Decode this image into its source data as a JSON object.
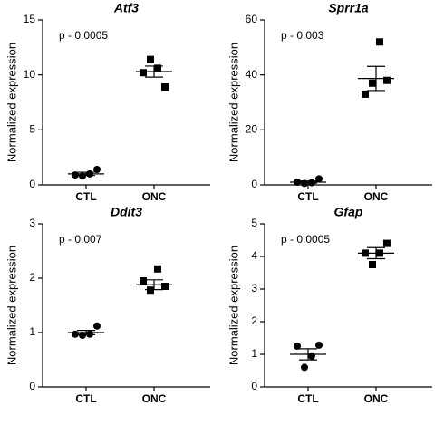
{
  "chart_data": [
    {
      "type": "scatter",
      "title": "Atf3",
      "annotation": "p - 0.0005",
      "ylabel": "Normalized expression",
      "categories": [
        "CTL",
        "ONC"
      ],
      "markers": [
        "circle",
        "square"
      ],
      "color": "#000000",
      "points": [
        [
          0.9,
          0.8,
          1.0,
          1.4
        ],
        [
          10.2,
          11.4,
          10.6,
          8.9
        ]
      ],
      "means": [
        1.0,
        10.3
      ],
      "errors": [
        0.15,
        0.5
      ],
      "ylim": [
        0,
        15
      ],
      "yticks": [
        0,
        5,
        10,
        15
      ]
    },
    {
      "type": "scatter",
      "title": "Sprr1a",
      "annotation": "p - 0.003",
      "ylabel": "Normalized expression",
      "categories": [
        "CTL",
        "ONC"
      ],
      "markers": [
        "circle",
        "square"
      ],
      "color": "#000000",
      "points": [
        [
          1.0,
          0.5,
          0.8,
          2.2
        ],
        [
          33,
          37,
          52,
          38
        ]
      ],
      "means": [
        1.0,
        38.7
      ],
      "errors": [
        0.4,
        4.4
      ],
      "ylim": [
        0,
        60
      ],
      "yticks": [
        0,
        20,
        40,
        60
      ]
    },
    {
      "type": "scatter",
      "title": "Ddit3",
      "annotation": "p - 0.007",
      "ylabel": "Normalized expression",
      "categories": [
        "CTL",
        "ONC"
      ],
      "markers": [
        "circle",
        "square"
      ],
      "color": "#000000",
      "points": [
        [
          0.97,
          0.95,
          0.97,
          1.12
        ],
        [
          1.95,
          1.78,
          2.17,
          1.85
        ]
      ],
      "means": [
        1.0,
        1.88
      ],
      "errors": [
        0.04,
        0.09
      ],
      "ylim": [
        0,
        3
      ],
      "yticks": [
        0,
        1,
        2,
        3
      ]
    },
    {
      "type": "scatter",
      "title": "Gfap",
      "annotation": "p - 0.0005",
      "ylabel": "Normalized expression",
      "categories": [
        "CTL",
        "ONC"
      ],
      "markers": [
        "circle",
        "square"
      ],
      "color": "#000000",
      "points": [
        [
          1.25,
          0.6,
          0.95,
          1.28
        ],
        [
          4.1,
          3.75,
          4.1,
          4.4
        ]
      ],
      "means": [
        1.0,
        4.1
      ],
      "errors": [
        0.17,
        0.17
      ],
      "ylim": [
        0,
        5
      ],
      "yticks": [
        0,
        1,
        2,
        3,
        4,
        5
      ]
    }
  ]
}
